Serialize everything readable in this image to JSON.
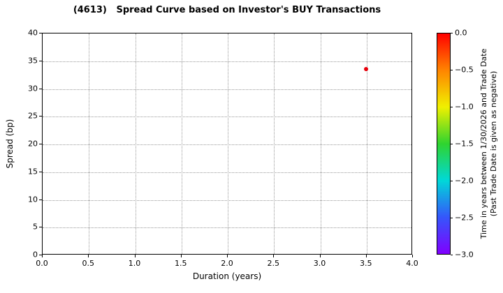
{
  "chart_data": {
    "type": "scatter",
    "title": "(4613)   Spread Curve based on Investor's BUY Transactions",
    "xlabel": "Duration (years)",
    "ylabel": "Spread (bp)",
    "xlim": [
      0.0,
      4.0
    ],
    "ylim": [
      0,
      40
    ],
    "x_ticks": [
      0.0,
      0.5,
      1.0,
      1.5,
      2.0,
      2.5,
      3.0,
      3.5,
      4.0
    ],
    "x_tick_labels": [
      "0.0",
      "0.5",
      "1.0",
      "1.5",
      "2.0",
      "2.5",
      "3.0",
      "3.5",
      "4.0"
    ],
    "y_ticks": [
      0,
      5,
      10,
      15,
      20,
      25,
      30,
      35,
      40
    ],
    "y_tick_labels": [
      "0",
      "5",
      "10",
      "15",
      "20",
      "25",
      "30",
      "35",
      "40"
    ],
    "grid": "dotted",
    "legend": "none",
    "points": [
      {
        "x": 3.5,
        "y": 33.5,
        "color_value": 0.0,
        "color": "#e8000b"
      }
    ],
    "colorbar": {
      "label_line1": "Time in years between 1/30/2026 and Trade Date",
      "label_line2": "(Past Trade Date is given as negative)",
      "ticks": [
        "0.0",
        "−0.5",
        "−1.0",
        "−1.5",
        "−2.0",
        "−2.5",
        "−3.0"
      ],
      "tick_values": [
        0.0,
        -0.5,
        -1.0,
        -1.5,
        -2.0,
        -2.5,
        -3.0
      ],
      "range": [
        0.0,
        -3.0
      ],
      "colormap": "rainbow",
      "gradient": [
        "#ff0000",
        "#ff8400",
        "#f0f000",
        "#2fd42f",
        "#00d8d8",
        "#3556fb",
        "#8000ff"
      ]
    }
  }
}
